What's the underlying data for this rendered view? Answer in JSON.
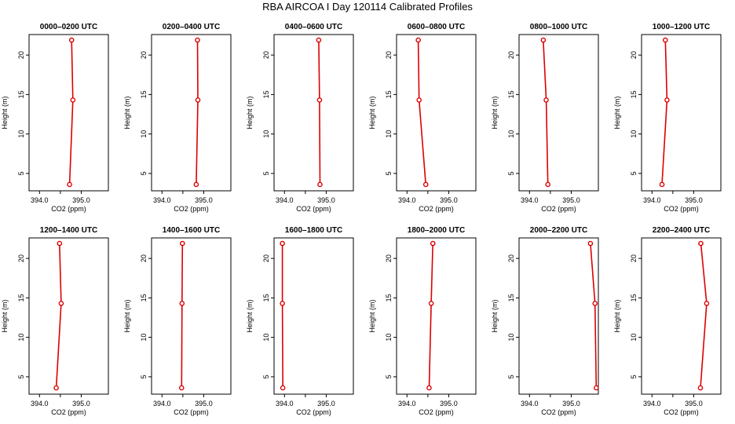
{
  "title": "RBA AIRCOA I  Day 120114  Calibrated Profiles",
  "colors": {
    "series": "#dd0000",
    "axis": "#000000"
  },
  "chart_data": [
    {
      "type": "line",
      "title": "0000–0200 UTC",
      "xlabel": "CO2 (ppm)",
      "ylabel": "Height (m)",
      "xlim": [
        393.75,
        395.65
      ],
      "ylim": [
        2.8,
        22.6
      ],
      "xticks": [
        "394.0",
        "395.0"
      ],
      "yticks": [
        "5",
        "10",
        "15",
        "20"
      ],
      "x": [
        394.72,
        394.8,
        394.77
      ],
      "y": [
        3.6,
        14.3,
        21.9
      ]
    },
    {
      "type": "line",
      "title": "0200–0400 UTC",
      "xlabel": "CO2 (ppm)",
      "ylabel": "Height (m)",
      "xlim": [
        393.75,
        395.65
      ],
      "ylim": [
        2.8,
        22.6
      ],
      "xticks": [
        "394.0",
        "395.0"
      ],
      "yticks": [
        "5",
        "10",
        "15",
        "20"
      ],
      "x": [
        394.82,
        394.86,
        394.85
      ],
      "y": [
        3.6,
        14.3,
        21.9
      ]
    },
    {
      "type": "line",
      "title": "0400–0600 UTC",
      "xlabel": "CO2 (ppm)",
      "ylabel": "Height (m)",
      "xlim": [
        393.75,
        395.65
      ],
      "ylim": [
        2.8,
        22.6
      ],
      "xticks": [
        "394.0",
        "395.0"
      ],
      "yticks": [
        "5",
        "10",
        "15",
        "20"
      ],
      "x": [
        394.85,
        394.84,
        394.82
      ],
      "y": [
        3.6,
        14.3,
        21.9
      ]
    },
    {
      "type": "line",
      "title": "0600–0800 UTC",
      "xlabel": "CO2 (ppm)",
      "ylabel": "Height (m)",
      "xlim": [
        393.75,
        395.65
      ],
      "ylim": [
        2.8,
        22.6
      ],
      "xticks": [
        "394.0",
        "395.0"
      ],
      "yticks": [
        "5",
        "10",
        "15",
        "20"
      ],
      "x": [
        394.45,
        394.29,
        394.27
      ],
      "y": [
        3.6,
        14.3,
        21.9
      ]
    },
    {
      "type": "line",
      "title": "0800–1000 UTC",
      "xlabel": "CO2 (ppm)",
      "ylabel": "Height (m)",
      "xlim": [
        393.75,
        395.65
      ],
      "ylim": [
        2.8,
        22.6
      ],
      "xticks": [
        "394.0",
        "395.0"
      ],
      "yticks": [
        "5",
        "10",
        "15",
        "20"
      ],
      "x": [
        394.44,
        394.4,
        394.33
      ],
      "y": [
        3.6,
        14.3,
        21.9
      ]
    },
    {
      "type": "line",
      "title": "1000–1200 UTC",
      "xlabel": "CO2 (ppm)",
      "ylabel": "Height (m)",
      "xlim": [
        393.75,
        395.65
      ],
      "ylim": [
        2.8,
        22.6
      ],
      "xticks": [
        "394.0",
        "395.0"
      ],
      "yticks": [
        "5",
        "10",
        "15",
        "20"
      ],
      "x": [
        394.24,
        394.36,
        394.32
      ],
      "y": [
        3.6,
        14.3,
        21.9
      ]
    },
    {
      "type": "line",
      "title": "1200–1400 UTC",
      "xlabel": "CO2 (ppm)",
      "ylabel": "Height (m)",
      "xlim": [
        393.75,
        395.65
      ],
      "ylim": [
        2.8,
        22.6
      ],
      "xticks": [
        "394.0",
        "395.0"
      ],
      "yticks": [
        "5",
        "10",
        "15",
        "20"
      ],
      "x": [
        394.4,
        394.52,
        394.48
      ],
      "y": [
        3.6,
        14.3,
        21.9
      ]
    },
    {
      "type": "line",
      "title": "1400–1600 UTC",
      "xlabel": "CO2 (ppm)",
      "ylabel": "Height (m)",
      "xlim": [
        393.75,
        395.65
      ],
      "ylim": [
        2.8,
        22.6
      ],
      "xticks": [
        "394.0",
        "395.0"
      ],
      "yticks": [
        "5",
        "10",
        "15",
        "20"
      ],
      "x": [
        394.47,
        394.48,
        394.49
      ],
      "y": [
        3.6,
        14.3,
        21.9
      ]
    },
    {
      "type": "line",
      "title": "1600–1800 UTC",
      "xlabel": "CO2 (ppm)",
      "ylabel": "Height (m)",
      "xlim": [
        393.75,
        395.65
      ],
      "ylim": [
        2.8,
        22.6
      ],
      "xticks": [
        "394.0",
        "395.0"
      ],
      "yticks": [
        "5",
        "10",
        "15",
        "20"
      ],
      "x": [
        393.96,
        393.95,
        393.95
      ],
      "y": [
        3.6,
        14.3,
        21.9
      ]
    },
    {
      "type": "line",
      "title": "1800–2000 UTC",
      "xlabel": "CO2 (ppm)",
      "ylabel": "Height (m)",
      "xlim": [
        393.75,
        395.65
      ],
      "ylim": [
        2.8,
        22.6
      ],
      "xticks": [
        "394.0",
        "395.0"
      ],
      "yticks": [
        "5",
        "10",
        "15",
        "20"
      ],
      "x": [
        394.53,
        394.58,
        394.62
      ],
      "y": [
        3.6,
        14.3,
        21.9
      ]
    },
    {
      "type": "line",
      "title": "2000–2200 UTC",
      "xlabel": "CO2 (ppm)",
      "ylabel": "Height (m)",
      "xlim": [
        393.75,
        395.65
      ],
      "ylim": [
        2.8,
        22.6
      ],
      "xticks": [
        "394.0",
        "395.0"
      ],
      "yticks": [
        "5",
        "10",
        "15",
        "20"
      ],
      "x": [
        395.6,
        395.57,
        395.46
      ],
      "y": [
        3.6,
        14.3,
        21.9
      ]
    },
    {
      "type": "line",
      "title": "2200–2400 UTC",
      "xlabel": "CO2 (ppm)",
      "ylabel": "Height (m)",
      "xlim": [
        393.75,
        395.65
      ],
      "ylim": [
        2.8,
        22.6
      ],
      "xticks": [
        "394.0",
        "395.0"
      ],
      "yticks": [
        "5",
        "10",
        "15",
        "20"
      ],
      "x": [
        395.16,
        395.31,
        395.17
      ],
      "y": [
        3.6,
        14.3,
        21.9
      ]
    }
  ]
}
